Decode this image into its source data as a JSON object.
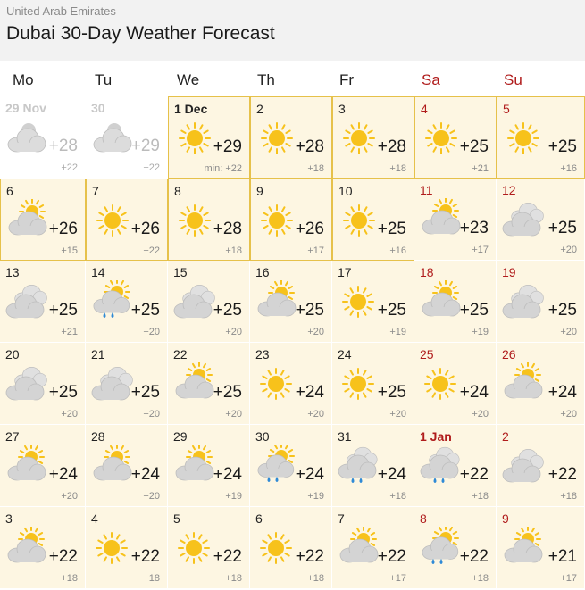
{
  "header": {
    "country": "United Arab Emirates",
    "title": "Dubai 30-Day Weather Forecast"
  },
  "weekdays": [
    {
      "label": "Mo",
      "weekend": false
    },
    {
      "label": "Tu",
      "weekend": false
    },
    {
      "label": "We",
      "weekend": false
    },
    {
      "label": "Th",
      "weekend": false
    },
    {
      "label": "Fr",
      "weekend": false
    },
    {
      "label": "Sa",
      "weekend": true
    },
    {
      "label": "Su",
      "weekend": true
    }
  ],
  "days": [
    {
      "date": "29 Nov",
      "hi": "+28",
      "lo": "+22",
      "icon": "partly-cloudy-icon",
      "past": true
    },
    {
      "date": "30",
      "hi": "+29",
      "lo": "+22",
      "icon": "partly-cloudy-icon",
      "past": true
    },
    {
      "date": "1 Dec",
      "hi": "+29",
      "lo": "min: +22",
      "icon": "sun-icon",
      "bold": true,
      "highlight": true
    },
    {
      "date": "2",
      "hi": "+28",
      "lo": "+18",
      "icon": "sun-icon",
      "highlight": true
    },
    {
      "date": "3",
      "hi": "+28",
      "lo": "+18",
      "icon": "sun-icon",
      "highlight": true
    },
    {
      "date": "4",
      "hi": "+25",
      "lo": "+21",
      "icon": "sun-icon",
      "highlight": true,
      "weekend": true
    },
    {
      "date": "5",
      "hi": "+25",
      "lo": "+16",
      "icon": "sun-icon",
      "highlight": true,
      "weekend": true
    },
    {
      "date": "6",
      "hi": "+26",
      "lo": "+15",
      "icon": "partly-cloudy-icon",
      "highlight": true
    },
    {
      "date": "7",
      "hi": "+26",
      "lo": "+22",
      "icon": "sun-icon",
      "highlight": true
    },
    {
      "date": "8",
      "hi": "+28",
      "lo": "+18",
      "icon": "sun-icon",
      "highlight": true
    },
    {
      "date": "9",
      "hi": "+26",
      "lo": "+17",
      "icon": "sun-icon",
      "highlight": true
    },
    {
      "date": "10",
      "hi": "+25",
      "lo": "+16",
      "icon": "sun-icon",
      "highlight": true
    },
    {
      "date": "11",
      "hi": "+23",
      "lo": "+17",
      "icon": "partly-cloudy-icon",
      "weekend": true
    },
    {
      "date": "12",
      "hi": "+25",
      "lo": "+20",
      "icon": "cloudy-icon",
      "weekend": true
    },
    {
      "date": "13",
      "hi": "+25",
      "lo": "+21",
      "icon": "cloudy-icon"
    },
    {
      "date": "14",
      "hi": "+25",
      "lo": "+20",
      "icon": "rain-sun-icon"
    },
    {
      "date": "15",
      "hi": "+25",
      "lo": "+20",
      "icon": "cloudy-icon"
    },
    {
      "date": "16",
      "hi": "+25",
      "lo": "+20",
      "icon": "partly-cloudy-icon"
    },
    {
      "date": "17",
      "hi": "+25",
      "lo": "+19",
      "icon": "sun-icon"
    },
    {
      "date": "18",
      "hi": "+25",
      "lo": "+19",
      "icon": "partly-cloudy-icon",
      "weekend": true
    },
    {
      "date": "19",
      "hi": "+25",
      "lo": "+20",
      "icon": "cloudy-icon",
      "weekend": true
    },
    {
      "date": "20",
      "hi": "+25",
      "lo": "+20",
      "icon": "cloudy-icon"
    },
    {
      "date": "21",
      "hi": "+25",
      "lo": "+20",
      "icon": "cloudy-icon"
    },
    {
      "date": "22",
      "hi": "+25",
      "lo": "+20",
      "icon": "partly-cloudy-icon"
    },
    {
      "date": "23",
      "hi": "+24",
      "lo": "+20",
      "icon": "sun-icon"
    },
    {
      "date": "24",
      "hi": "+25",
      "lo": "+20",
      "icon": "sun-icon"
    },
    {
      "date": "25",
      "hi": "+24",
      "lo": "+20",
      "icon": "sun-icon",
      "weekend": true
    },
    {
      "date": "26",
      "hi": "+24",
      "lo": "+20",
      "icon": "partly-cloudy-icon",
      "weekend": true
    },
    {
      "date": "27",
      "hi": "+24",
      "lo": "+20",
      "icon": "partly-cloudy-icon"
    },
    {
      "date": "28",
      "hi": "+24",
      "lo": "+20",
      "icon": "partly-cloudy-icon"
    },
    {
      "date": "29",
      "hi": "+24",
      "lo": "+19",
      "icon": "partly-cloudy-icon"
    },
    {
      "date": "30",
      "hi": "+24",
      "lo": "+19",
      "icon": "rain-sun-icon"
    },
    {
      "date": "31",
      "hi": "+24",
      "lo": "+18",
      "icon": "rain-cloud-icon"
    },
    {
      "date": "1 Jan",
      "hi": "+22",
      "lo": "+18",
      "icon": "rain-cloud-icon",
      "weekend": true,
      "bold": true
    },
    {
      "date": "2",
      "hi": "+22",
      "lo": "+18",
      "icon": "cloudy-icon",
      "weekend": true
    },
    {
      "date": "3",
      "hi": "+22",
      "lo": "+18",
      "icon": "partly-cloudy-icon"
    },
    {
      "date": "4",
      "hi": "+22",
      "lo": "+18",
      "icon": "sun-icon"
    },
    {
      "date": "5",
      "hi": "+22",
      "lo": "+18",
      "icon": "sun-icon"
    },
    {
      "date": "6",
      "hi": "+22",
      "lo": "+18",
      "icon": "sun-icon"
    },
    {
      "date": "7",
      "hi": "+22",
      "lo": "+17",
      "icon": "partly-cloudy-icon"
    },
    {
      "date": "8",
      "hi": "+22",
      "lo": "+18",
      "icon": "rain-sun-icon",
      "weekend": true
    },
    {
      "date": "9",
      "hi": "+21",
      "lo": "+17",
      "icon": "partly-cloudy-icon",
      "weekend": true
    }
  ],
  "colors": {
    "weekend": "#b01c1c",
    "highlight_border": "#e6c14a",
    "cell_bg": "#fdf6e2",
    "sun": "#f7c21b",
    "cloud": "#cfcfcf",
    "rain": "#2f8ad6"
  }
}
